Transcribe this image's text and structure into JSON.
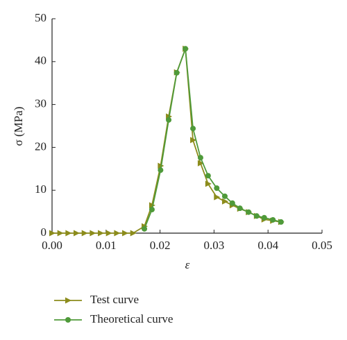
{
  "chart_data": {
    "type": "line",
    "x_label": "ε",
    "y_label": "σ (MPa)",
    "xlim": [
      0,
      0.05
    ],
    "ylim": [
      0,
      50
    ],
    "xticks": [
      {
        "value": 0,
        "label": "0.00"
      },
      0.01,
      0.02,
      0.03,
      0.04,
      0.05
    ],
    "yticks": [
      0,
      10,
      20,
      30,
      40,
      50
    ],
    "series": [
      {
        "name": "Test curve",
        "color": "#8c8c1c",
        "marker": "triangle",
        "x": [
          0,
          0.0015,
          0.003,
          0.0045,
          0.006,
          0.0075,
          0.009,
          0.0105,
          0.012,
          0.0135,
          0.015,
          0.0171,
          0.0185,
          0.0201,
          0.0216,
          0.0231,
          0.0247,
          0.0261,
          0.0275,
          0.0289,
          0.0305,
          0.032,
          0.0334,
          0.0348,
          0.0364,
          0.0379,
          0.0393,
          0.0409,
          0.0424
        ],
        "values": [
          0,
          0,
          0,
          0,
          0,
          0,
          0,
          0,
          0,
          0,
          0,
          1.6,
          6.5,
          15.7,
          27.2,
          37.5,
          43,
          21.7,
          16.3,
          11.5,
          8.4,
          7.4,
          6.5,
          5.7,
          4.9,
          4,
          3.2,
          2.9,
          2.6
        ]
      },
      {
        "name": "Theoretical curve",
        "color": "#4f9a3a",
        "marker": "circle",
        "x": [
          0.0171,
          0.0185,
          0.0201,
          0.0216,
          0.0231,
          0.0247,
          0.0261,
          0.0275,
          0.0289,
          0.0305,
          0.032,
          0.0334,
          0.0348,
          0.0364,
          0.0379,
          0.0393,
          0.0409,
          0.0424
        ],
        "values": [
          1,
          5.5,
          14.7,
          26.4,
          37.4,
          43,
          24.4,
          17.6,
          13.4,
          10.5,
          8.6,
          7,
          5.8,
          4.9,
          4,
          3.6,
          3.1,
          2.6
        ]
      }
    ]
  }
}
